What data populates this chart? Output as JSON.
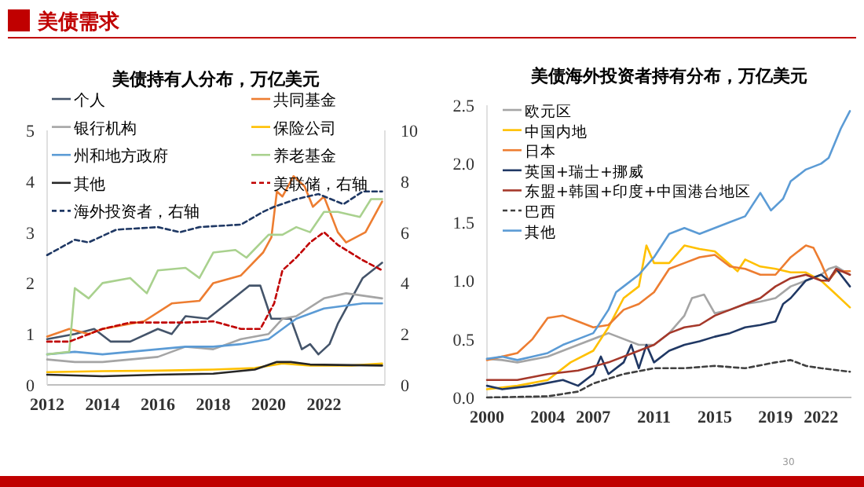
{
  "chart_data": [
    {
      "type": "other",
      "title": "美债需求",
      "annotations": [
        "30"
      ]
    },
    {
      "type": "line",
      "title": "美债持有人分布，万亿美元",
      "legend": "top left",
      "xlim": [
        2012,
        2024.2
      ],
      "xticks": [
        2012,
        2014,
        2016,
        2018,
        2020,
        2022
      ],
      "ylim": [
        0,
        5
      ],
      "yticks": [
        0,
        1,
        2,
        3,
        4,
        5
      ],
      "y2lim": [
        0,
        10
      ],
      "y2ticks": [
        0,
        2,
        4,
        6,
        8,
        10
      ],
      "series": [
        {
          "name": "个人",
          "color": "#44546a",
          "x": [
            2012,
            2013,
            2013.7,
            2014.3,
            2015,
            2016,
            2016.5,
            2017,
            2017.8,
            2018.5,
            2019.3,
            2019.7,
            2020.1,
            2020.8,
            2021.2,
            2021.5,
            2021.8,
            2022.2,
            2022.5,
            2023.4,
            2024.1
          ],
          "values": [
            0.9,
            1.0,
            1.1,
            0.85,
            0.85,
            1.1,
            1.0,
            1.35,
            1.3,
            1.6,
            1.95,
            1.95,
            1.3,
            1.3,
            0.7,
            0.8,
            0.6,
            0.8,
            1.2,
            2.1,
            2.4
          ]
        },
        {
          "name": "共同基金",
          "color": "#ed7d31",
          "x": [
            2012,
            2012.8,
            2013.5,
            2014,
            2015.5,
            2016.5,
            2017.5,
            2018,
            2019,
            2019.8,
            2020.1,
            2020.3,
            2020.5,
            2020.9,
            2021.3,
            2021.6,
            2022,
            2022.5,
            2022.8,
            2023.5,
            2024.1
          ],
          "values": [
            0.95,
            1.1,
            1.0,
            1.1,
            1.25,
            1.6,
            1.65,
            2.0,
            2.15,
            2.6,
            2.9,
            3.8,
            3.7,
            4.1,
            3.9,
            3.5,
            3.7,
            3.0,
            2.8,
            3.0,
            3.6
          ]
        },
        {
          "name": "银行机构",
          "color": "#a5a5a5",
          "x": [
            2012,
            2013,
            2014,
            2015,
            2016,
            2017,
            2018,
            2019,
            2020,
            2020.5,
            2021,
            2022,
            2022.8,
            2024.1
          ],
          "values": [
            0.5,
            0.45,
            0.45,
            0.5,
            0.55,
            0.75,
            0.7,
            0.9,
            1.0,
            1.3,
            1.35,
            1.7,
            1.8,
            1.7
          ]
        },
        {
          "name": "保险公司",
          "color": "#ffc000",
          "x": [
            2012,
            2014,
            2016,
            2018,
            2019.5,
            2020.5,
            2021.5,
            2023,
            2024.1
          ],
          "values": [
            0.25,
            0.27,
            0.28,
            0.3,
            0.33,
            0.42,
            0.38,
            0.38,
            0.42
          ]
        },
        {
          "name": "州和地方政府",
          "color": "#5b9bd5",
          "x": [
            2012,
            2013,
            2014,
            2016,
            2017,
            2018,
            2019,
            2020,
            2020.5,
            2021,
            2022,
            2023.4,
            2024.1
          ],
          "values": [
            0.6,
            0.65,
            0.6,
            0.7,
            0.75,
            0.75,
            0.8,
            0.9,
            1.1,
            1.3,
            1.5,
            1.6,
            1.6
          ]
        },
        {
          "name": "养老基金",
          "color": "#a9d18e",
          "x": [
            2012,
            2012.8,
            2013,
            2013.5,
            2014,
            2015,
            2015.6,
            2016,
            2017,
            2017.5,
            2018,
            2018.8,
            2019.2,
            2020,
            2020.5,
            2021,
            2021.5,
            2022,
            2022.5,
            2023.3,
            2023.7,
            2024.1
          ],
          "values": [
            0.6,
            0.65,
            1.9,
            1.7,
            2.0,
            2.1,
            1.8,
            2.25,
            2.3,
            2.1,
            2.6,
            2.65,
            2.5,
            2.95,
            2.95,
            3.1,
            3.0,
            3.4,
            3.4,
            3.3,
            3.65,
            3.65
          ]
        },
        {
          "name": "其他",
          "color": "#262626",
          "x": [
            2012,
            2014,
            2016,
            2018,
            2019.5,
            2020.3,
            2020.8,
            2021.5,
            2024.1
          ],
          "values": [
            0.2,
            0.17,
            0.2,
            0.22,
            0.3,
            0.45,
            0.45,
            0.4,
            0.38
          ]
        },
        {
          "name": "美联储，右轴",
          "color": "#c00000",
          "axis": "y2",
          "line_style": "dashed",
          "x": [
            2012,
            2012.8,
            2014,
            2015,
            2017,
            2018,
            2019,
            2019.7,
            2020.2,
            2020.5,
            2021,
            2021.5,
            2022,
            2022.5,
            2023.4,
            2024.1
          ],
          "values": [
            1.7,
            1.7,
            2.2,
            2.45,
            2.45,
            2.5,
            2.2,
            2.2,
            3.2,
            4.5,
            5.0,
            5.6,
            6.0,
            5.5,
            4.9,
            4.5
          ]
        },
        {
          "name": "海外投资者，右轴",
          "color": "#1f3864",
          "axis": "y2",
          "line_style": "dashed",
          "x": [
            2012,
            2013,
            2013.5,
            2014.5,
            2016,
            2016.8,
            2017.5,
            2019,
            2019.8,
            2020.2,
            2021,
            2021.8,
            2022.7,
            2023.4,
            2024.1
          ],
          "values": [
            5.1,
            5.7,
            5.6,
            6.1,
            6.2,
            6.0,
            6.2,
            6.3,
            6.8,
            7.0,
            7.3,
            7.5,
            7.1,
            7.6,
            7.6
          ]
        }
      ]
    },
    {
      "type": "line",
      "title": "美债海外投资者持有分布，万亿美元",
      "legend": "top left",
      "xlim": [
        2000,
        2024
      ],
      "xticks": [
        2000,
        2004,
        2007,
        2011,
        2015,
        2019,
        2022
      ],
      "ylim": [
        0,
        2.5
      ],
      "yticks": [
        {
          "value": 0,
          "label": "0.0"
        },
        {
          "value": 0.5,
          "label": "0.5"
        },
        {
          "value": 1,
          "label": "1.0"
        },
        {
          "value": 1.5,
          "label": "1.5"
        },
        {
          "value": 2,
          "label": "2.0"
        },
        {
          "value": 2.5,
          "label": "2.5"
        }
      ],
      "series": [
        {
          "name": "欧元区",
          "color": "#a5a5a5",
          "x": [
            2000,
            2001,
            2002,
            2004,
            2006,
            2008,
            2010,
            2011,
            2012,
            2013,
            2013.5,
            2014.3,
            2015,
            2016,
            2017,
            2018,
            2019,
            2020,
            2021,
            2022,
            2022.5,
            2023,
            2023.9
          ],
          "values": [
            0.33,
            0.32,
            0.3,
            0.35,
            0.45,
            0.55,
            0.45,
            0.45,
            0.55,
            0.7,
            0.85,
            0.88,
            0.72,
            0.75,
            0.8,
            0.82,
            0.85,
            0.95,
            1.0,
            1.05,
            1.1,
            1.12,
            1.05
          ]
        },
        {
          "name": "中国内地",
          "color": "#ffc000",
          "x": [
            2000,
            2002,
            2004,
            2005.5,
            2007,
            2008,
            2009,
            2010,
            2010.5,
            2011,
            2012,
            2013,
            2014,
            2015,
            2016.5,
            2017,
            2018,
            2019,
            2020,
            2021,
            2022,
            2023,
            2023.9
          ],
          "values": [
            0.07,
            0.1,
            0.15,
            0.3,
            0.4,
            0.6,
            0.85,
            0.95,
            1.3,
            1.15,
            1.15,
            1.3,
            1.27,
            1.25,
            1.08,
            1.18,
            1.12,
            1.1,
            1.07,
            1.07,
            1.0,
            0.88,
            0.77
          ]
        },
        {
          "name": "日本",
          "color": "#ed7d31",
          "x": [
            2000,
            2002,
            2003,
            2004,
            2005,
            2006,
            2007,
            2008,
            2009,
            2010,
            2011,
            2012,
            2013,
            2014,
            2015,
            2016,
            2017,
            2018,
            2019,
            2020,
            2021,
            2021.5,
            2022,
            2022.5,
            2023,
            2023.9
          ],
          "values": [
            0.32,
            0.38,
            0.5,
            0.68,
            0.7,
            0.65,
            0.6,
            0.62,
            0.75,
            0.8,
            0.9,
            1.1,
            1.15,
            1.2,
            1.22,
            1.12,
            1.1,
            1.05,
            1.05,
            1.2,
            1.3,
            1.28,
            1.15,
            1.0,
            1.08,
            1.08
          ]
        },
        {
          "name": "英国+瑞士+挪威",
          "color": "#203864",
          "x": [
            2000,
            2001,
            2003,
            2005,
            2006,
            2007,
            2007.5,
            2008,
            2009,
            2009.5,
            2010,
            2010.5,
            2011,
            2012,
            2013,
            2014,
            2015,
            2016,
            2017,
            2018,
            2019,
            2019.5,
            2020,
            2021,
            2022,
            2022.5,
            2023,
            2023.9
          ],
          "values": [
            0.1,
            0.07,
            0.1,
            0.15,
            0.1,
            0.2,
            0.35,
            0.2,
            0.3,
            0.45,
            0.25,
            0.45,
            0.3,
            0.4,
            0.45,
            0.48,
            0.52,
            0.55,
            0.6,
            0.62,
            0.65,
            0.8,
            0.85,
            1.0,
            1.05,
            1.0,
            1.1,
            0.95
          ]
        },
        {
          "name": "东盟+韩国+印度+中国港台地区",
          "color": "#a5382a",
          "x": [
            2000,
            2002,
            2004,
            2006,
            2008,
            2010,
            2011,
            2012,
            2013,
            2014,
            2015,
            2016,
            2017,
            2018,
            2019,
            2020,
            2021,
            2022,
            2022.5,
            2023,
            2023.9
          ],
          "values": [
            0.15,
            0.15,
            0.2,
            0.23,
            0.3,
            0.4,
            0.45,
            0.55,
            0.6,
            0.62,
            0.7,
            0.75,
            0.8,
            0.85,
            0.95,
            1.02,
            1.05,
            1.0,
            1.0,
            1.1,
            1.05
          ]
        },
        {
          "name": "巴西",
          "color": "#404040",
          "line_style": "dashed",
          "x": [
            2000,
            2004,
            2006,
            2007,
            2009,
            2011,
            2013,
            2015,
            2017,
            2019,
            2020,
            2021,
            2022,
            2023.9
          ],
          "values": [
            0.0,
            0.01,
            0.05,
            0.12,
            0.2,
            0.25,
            0.25,
            0.27,
            0.25,
            0.3,
            0.32,
            0.27,
            0.25,
            0.22
          ]
        },
        {
          "name": "其他",
          "color": "#5b9bd5",
          "x": [
            2000,
            2001,
            2002,
            2003,
            2004,
            2005,
            2006,
            2007,
            2008,
            2008.5,
            2009,
            2010,
            2011,
            2012,
            2013,
            2014,
            2015,
            2016,
            2017,
            2018,
            2018.7,
            2019.5,
            2020,
            2021,
            2022,
            2022.5,
            2023.3,
            2023.9
          ],
          "values": [
            0.33,
            0.35,
            0.32,
            0.35,
            0.38,
            0.45,
            0.5,
            0.55,
            0.75,
            0.9,
            0.95,
            1.05,
            1.2,
            1.4,
            1.45,
            1.4,
            1.45,
            1.5,
            1.55,
            1.75,
            1.6,
            1.7,
            1.85,
            1.95,
            2.0,
            2.05,
            2.3,
            2.45
          ]
        }
      ]
    }
  ]
}
